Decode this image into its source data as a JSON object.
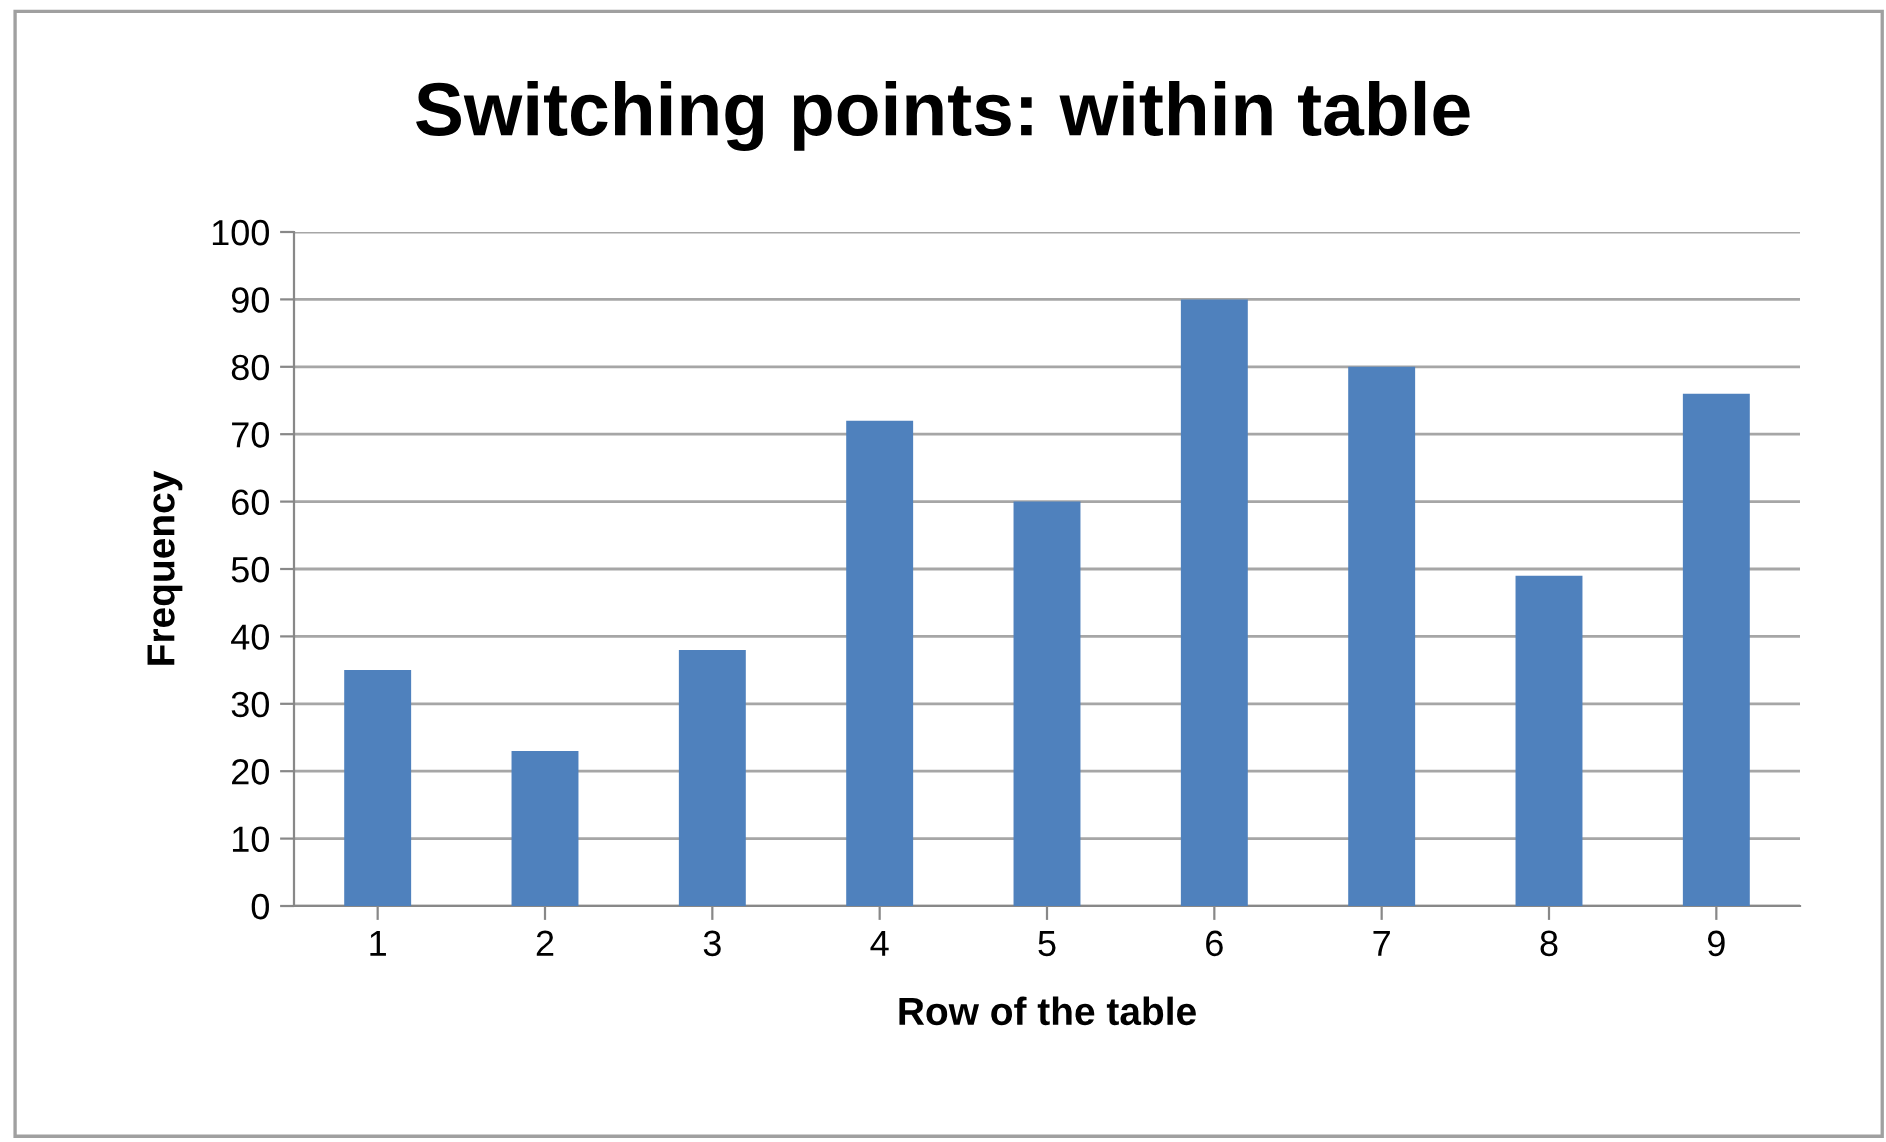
{
  "chart_data": {
    "type": "bar",
    "title": "Switching points: within table",
    "xlabel": "Row of the table",
    "ylabel": "Frequency",
    "categories": [
      "1",
      "2",
      "3",
      "4",
      "5",
      "6",
      "7",
      "8",
      "9"
    ],
    "values": [
      35,
      23,
      38,
      72,
      60,
      90,
      80,
      49,
      76
    ],
    "color": "#4f81bd",
    "ylim": [
      0,
      100
    ],
    "yticks": [
      0,
      10,
      20,
      30,
      40,
      50,
      60,
      70,
      80,
      90,
      100
    ],
    "grid": "y",
    "legend": false
  }
}
